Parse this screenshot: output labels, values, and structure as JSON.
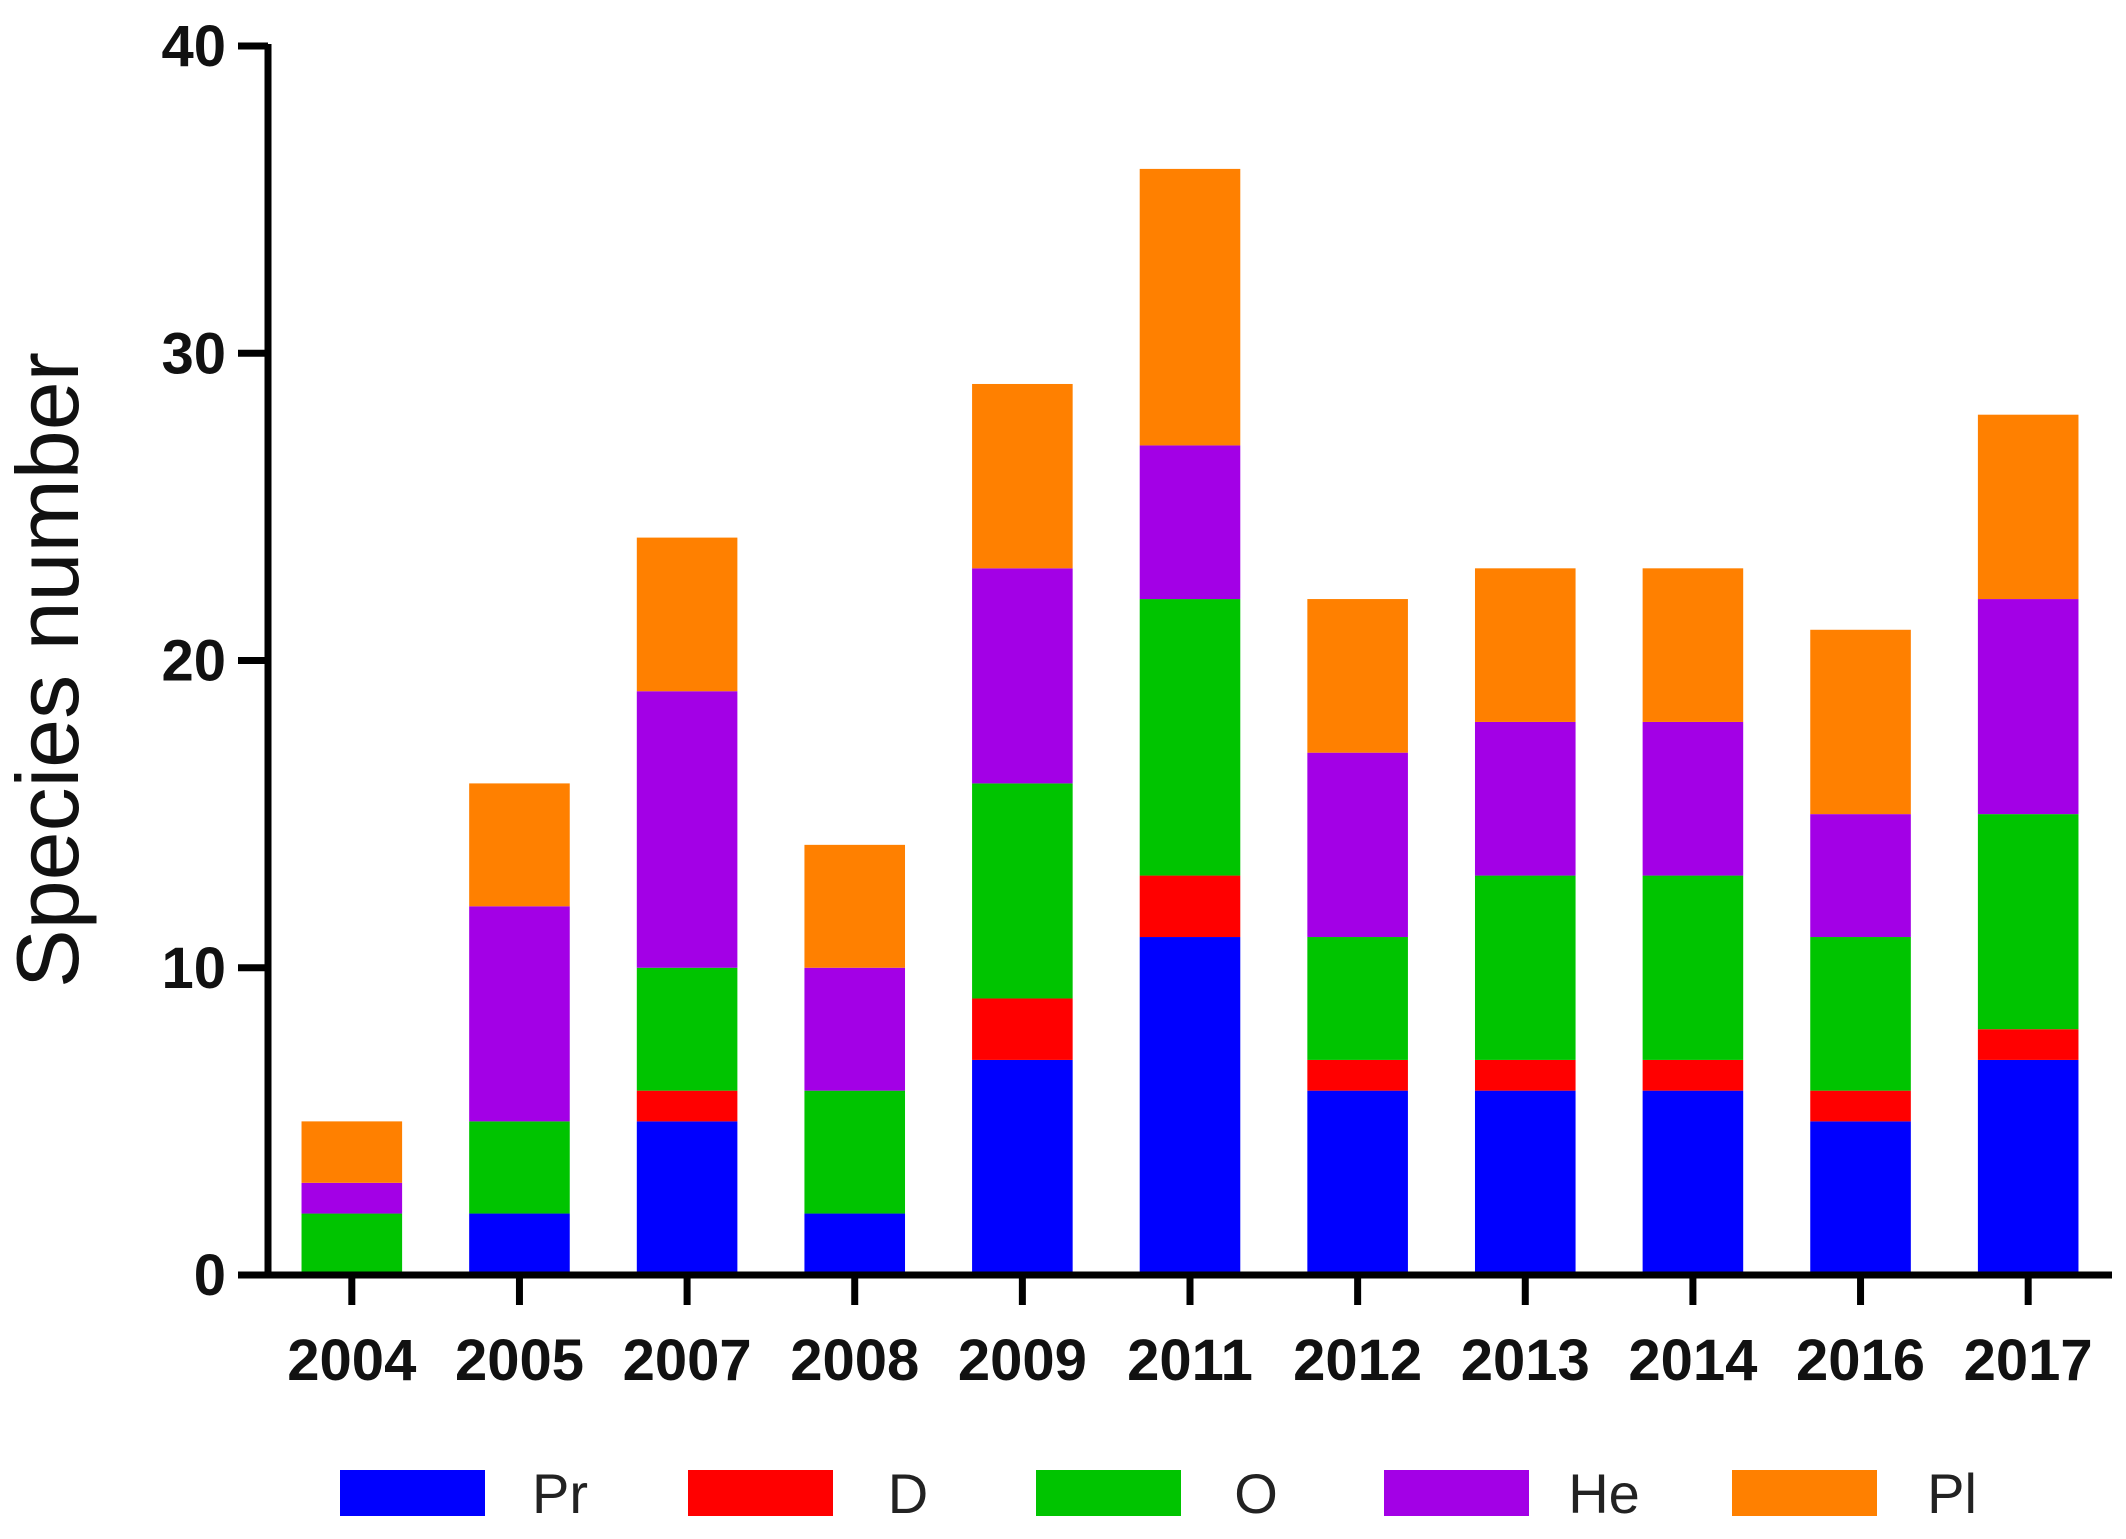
{
  "chart_data": {
    "type": "bar",
    "stacked": true,
    "title": "",
    "xlabel": "",
    "ylabel": "Species number",
    "ylim": [
      0,
      40
    ],
    "yticks": [
      0,
      10,
      20,
      30,
      40
    ],
    "grid": false,
    "legend_position": "bottom",
    "categories": [
      "2004",
      "2005",
      "2007",
      "2008",
      "2009",
      "2011",
      "2012",
      "2013",
      "2014",
      "2016",
      "2017"
    ],
    "series": [
      {
        "name": "Pr",
        "color": "#0000ff",
        "values": [
          0,
          2,
          5,
          2,
          7,
          11,
          6,
          6,
          6,
          5,
          7
        ]
      },
      {
        "name": "D",
        "color": "#ff0000",
        "values": [
          0,
          0,
          1,
          0,
          2,
          2,
          1,
          1,
          1,
          1,
          1
        ]
      },
      {
        "name": "O",
        "color": "#00c400",
        "values": [
          2,
          3,
          4,
          4,
          7,
          9,
          4,
          6,
          6,
          5,
          7
        ]
      },
      {
        "name": "He",
        "color": "#a300e6",
        "values": [
          1,
          7,
          9,
          4,
          7,
          5,
          6,
          5,
          5,
          4,
          7
        ]
      },
      {
        "name": "Pl",
        "color": "#ff8000",
        "values": [
          2,
          4,
          5,
          4,
          6,
          9,
          5,
          5,
          5,
          6,
          6
        ]
      }
    ]
  }
}
